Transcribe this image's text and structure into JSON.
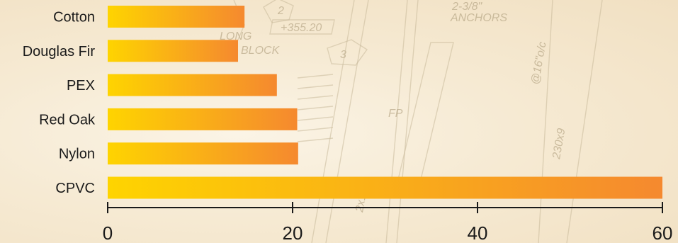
{
  "chart_data": {
    "type": "bar",
    "orientation": "horizontal",
    "title": "",
    "xlabel": "",
    "ylabel": "",
    "categories": [
      "Cotton",
      "Douglas Fir",
      "PEX",
      "Red Oak",
      "Nylon",
      "CPVC"
    ],
    "values": [
      14.8,
      14.1,
      18.3,
      20.5,
      20.6,
      60.0
    ],
    "xlim": [
      0,
      60
    ],
    "xticks": [
      "0",
      "20",
      "40",
      "60"
    ],
    "grid": false,
    "legend": "none",
    "bar_gradient": [
      "#fed400",
      "#f5892f"
    ],
    "axis_color": "#1a1a1a"
  },
  "background": {
    "decorative_texts": [
      "2-3/8\"",
      "ANCHORS",
      "+355.20",
      "LONG",
      "BLOCK",
      "FP",
      "230x9",
      "@16\"o/c",
      "2x10"
    ],
    "decorative_numbers": [
      "2",
      "3"
    ]
  }
}
